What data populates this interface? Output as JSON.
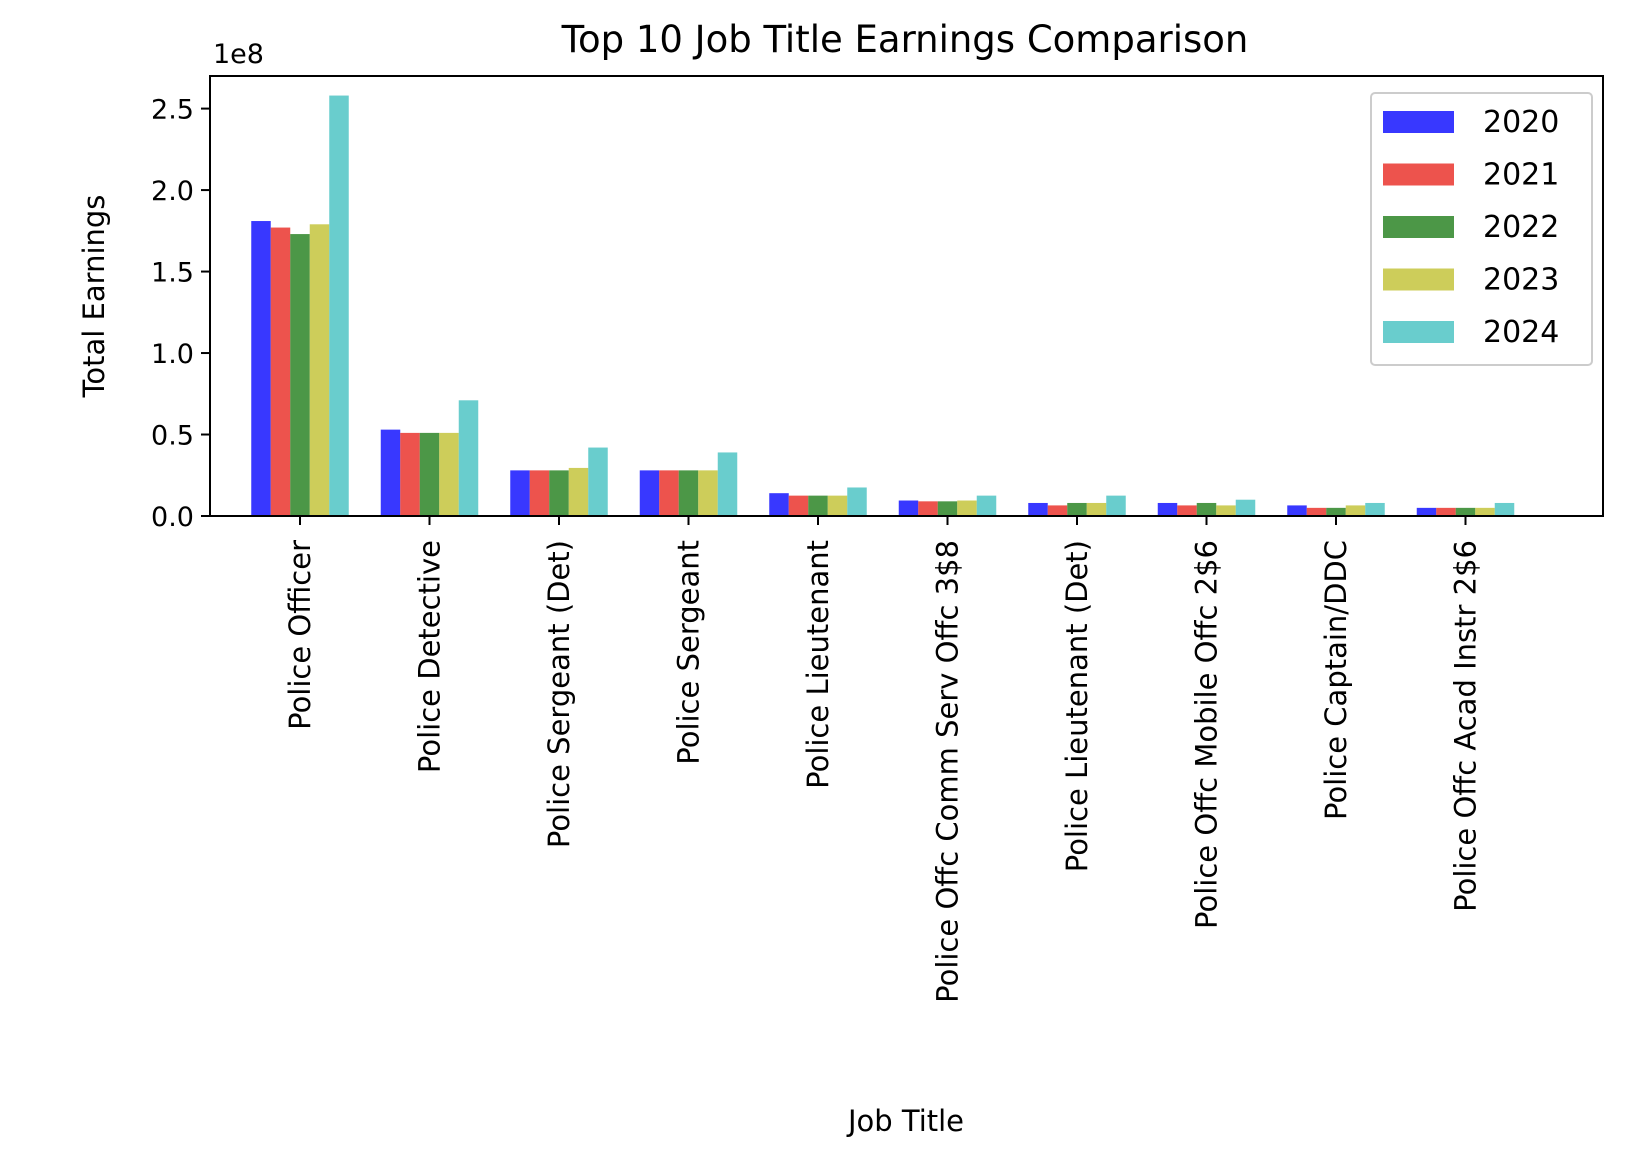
{
  "chart_data": {
    "type": "bar",
    "title": "Top 10 Job Title Earnings Comparison",
    "xlabel": "Job Title",
    "ylabel": "Total Earnings",
    "offset_label": "1e8",
    "ylim": [
      0,
      270000000
    ],
    "yticks": [
      0,
      50000000,
      100000000,
      150000000,
      200000000,
      250000000
    ],
    "ytick_labels": [
      "0.0",
      "0.5",
      "1.0",
      "1.5",
      "2.0",
      "2.5"
    ],
    "grid": false,
    "legend_position": "top-right",
    "categories": [
      "Police Officer",
      "Police Detective",
      "Police Sergeant (Det)",
      "Police Sergeant",
      "Police Lieutenant",
      "Police Offc Comm Serv Offc 3$8",
      "Police Lieutenant (Det)",
      "Police Offc Mobile Offc 2$6",
      "Police Captain/DDC",
      "Police Offc Acad Instr 2$6"
    ],
    "series": [
      {
        "name": "2020",
        "color": "#0000ff",
        "values": [
          181000000,
          53000000,
          28000000,
          28000000,
          14000000,
          9500000,
          8000000,
          8000000,
          6500000,
          5000000
        ]
      },
      {
        "name": "2021",
        "color": "#e8221b",
        "values": [
          177000000,
          51000000,
          28000000,
          28000000,
          12500000,
          9000000,
          6500000,
          6500000,
          5000000,
          5000000
        ]
      },
      {
        "name": "2022",
        "color": "#1a7a13",
        "values": [
          173000000,
          51000000,
          28000000,
          28000000,
          12500000,
          9000000,
          8000000,
          8000000,
          5000000,
          5000000
        ]
      },
      {
        "name": "2023",
        "color": "#bfbf2c",
        "values": [
          179000000,
          51000000,
          29500000,
          28000000,
          12500000,
          9500000,
          8000000,
          6500000,
          6500000,
          5000000
        ]
      },
      {
        "name": "2024",
        "color": "#3fbfbf",
        "values": [
          258000000,
          71000000,
          42000000,
          39000000,
          17500000,
          12500000,
          12500000,
          10000000,
          8000000,
          8000000
        ]
      }
    ]
  }
}
